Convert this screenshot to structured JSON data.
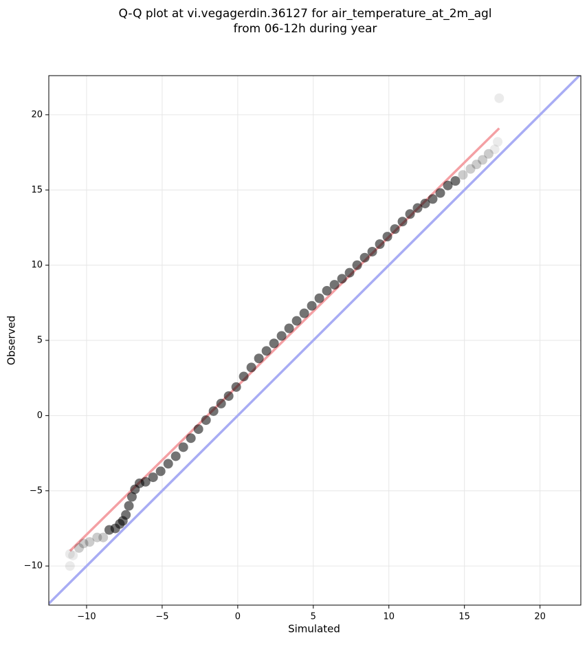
{
  "chart_data": {
    "type": "scatter",
    "title": [
      "Q-Q plot at vi.vegagerdin.36127 for air_temperature_at_2m_agl",
      "from 06-12h during year"
    ],
    "xlabel": "Simulated",
    "ylabel": "Observed",
    "xlim": [
      -12.5,
      22.7
    ],
    "ylim": [
      -12.6,
      22.6
    ],
    "xticks": [
      {
        "value": -10,
        "label": "−10"
      },
      {
        "value": -5,
        "label": "−5"
      },
      0,
      5,
      10,
      15,
      20
    ],
    "yticks": [
      {
        "value": -10,
        "label": "−10"
      },
      {
        "value": -5,
        "label": "−5"
      },
      0,
      5,
      10,
      15,
      20
    ],
    "grid": true,
    "color": "#000000",
    "x": [
      -11.1,
      -11.1,
      -10.9,
      -10.5,
      -10.2,
      -9.8,
      -9.3,
      -8.9,
      -8.5,
      -8.1,
      -7.8,
      -7.6,
      -7.4,
      -7.2,
      -7.0,
      -6.8,
      -6.5,
      -6.1,
      -5.6,
      -5.1,
      -4.6,
      -4.1,
      -3.6,
      -3.1,
      -2.6,
      -2.1,
      -1.6,
      -1.1,
      -0.6,
      -0.1,
      0.4,
      0.9,
      1.4,
      1.9,
      2.4,
      2.9,
      3.4,
      3.9,
      4.4,
      4.9,
      5.4,
      5.9,
      6.4,
      6.9,
      7.4,
      7.9,
      8.4,
      8.9,
      9.4,
      9.9,
      10.4,
      10.9,
      11.4,
      11.9,
      12.4,
      12.9,
      13.4,
      13.9,
      14.4,
      14.9,
      15.4,
      15.8,
      16.2,
      16.6,
      17.0,
      17.2,
      17.3
    ],
    "values": [
      -10.0,
      -9.2,
      -9.3,
      -8.8,
      -8.5,
      -8.4,
      -8.1,
      -8.1,
      -7.6,
      -7.5,
      -7.2,
      -7.0,
      -6.6,
      -6.0,
      -5.4,
      -4.9,
      -4.5,
      -4.4,
      -4.1,
      -3.7,
      -3.2,
      -2.7,
      -2.1,
      -1.5,
      -0.9,
      -0.3,
      0.3,
      0.8,
      1.3,
      1.9,
      2.6,
      3.2,
      3.8,
      4.3,
      4.8,
      5.3,
      5.8,
      6.3,
      6.8,
      7.3,
      7.8,
      8.3,
      8.7,
      9.1,
      9.5,
      10.0,
      10.5,
      10.9,
      11.4,
      11.9,
      12.4,
      12.9,
      13.4,
      13.8,
      14.1,
      14.4,
      14.8,
      15.3,
      15.6,
      16.0,
      16.4,
      16.7,
      17.0,
      17.4,
      17.7,
      18.2,
      21.1
    ],
    "fit_line": {
      "x": [
        -11.1,
        17.3
      ],
      "values": [
        -9.0,
        19.1
      ],
      "color": "#f4a0a4"
    },
    "identity_line": {
      "x": [
        -12.5,
        22.7
      ],
      "values": [
        -12.5,
        22.7
      ],
      "color": "#a8acf4"
    }
  }
}
